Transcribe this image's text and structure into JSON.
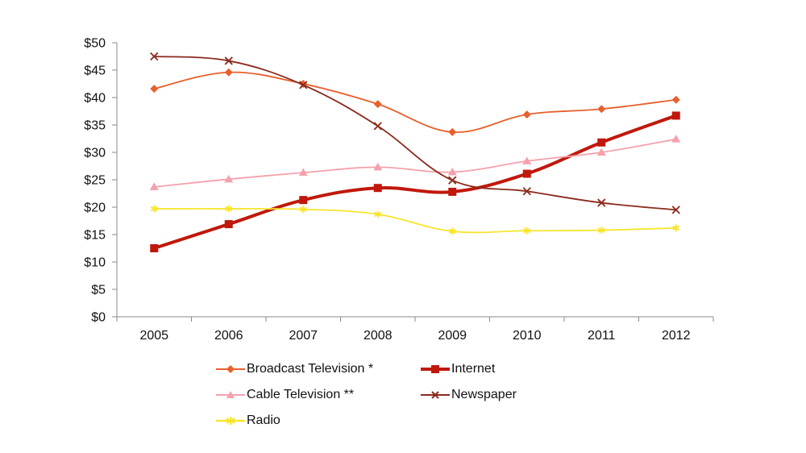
{
  "chart_data": {
    "type": "line",
    "title": "",
    "xlabel": "",
    "ylabel": "",
    "categories": [
      "2005",
      "2006",
      "2007",
      "2008",
      "2009",
      "2010",
      "2011",
      "2012"
    ],
    "ylim": [
      0,
      50
    ],
    "yticks": [
      "$0",
      "$5",
      "$10",
      "$15",
      "$20",
      "$25",
      "$30",
      "$35",
      "$40",
      "$45",
      "$50"
    ],
    "legend_position": "bottom",
    "series": [
      {
        "name": "Broadcast Television *",
        "color": "#E8602C",
        "marker": "diamond",
        "values": [
          41.6,
          44.6,
          42.5,
          38.8,
          33.7,
          36.9,
          37.9,
          39.6
        ]
      },
      {
        "name": "Internet",
        "color": "#C0180C",
        "marker": "square",
        "values": [
          12.5,
          16.9,
          21.3,
          23.5,
          22.8,
          26.1,
          31.8,
          36.7
        ]
      },
      {
        "name": "Cable Television **",
        "color": "#F4A1AC",
        "marker": "triangle",
        "values": [
          23.7,
          25.1,
          26.3,
          27.3,
          26.4,
          28.4,
          30.0,
          32.4
        ]
      },
      {
        "name": "Newspaper",
        "color": "#8B2A1C",
        "marker": "x",
        "values": [
          47.5,
          46.7,
          42.3,
          34.8,
          24.9,
          22.9,
          20.8,
          19.5
        ]
      },
      {
        "name": "Radio",
        "color": "#F7E52C",
        "marker": "star",
        "values": [
          19.7,
          19.7,
          19.6,
          18.7,
          15.6,
          15.7,
          15.8,
          16.2
        ]
      }
    ]
  }
}
